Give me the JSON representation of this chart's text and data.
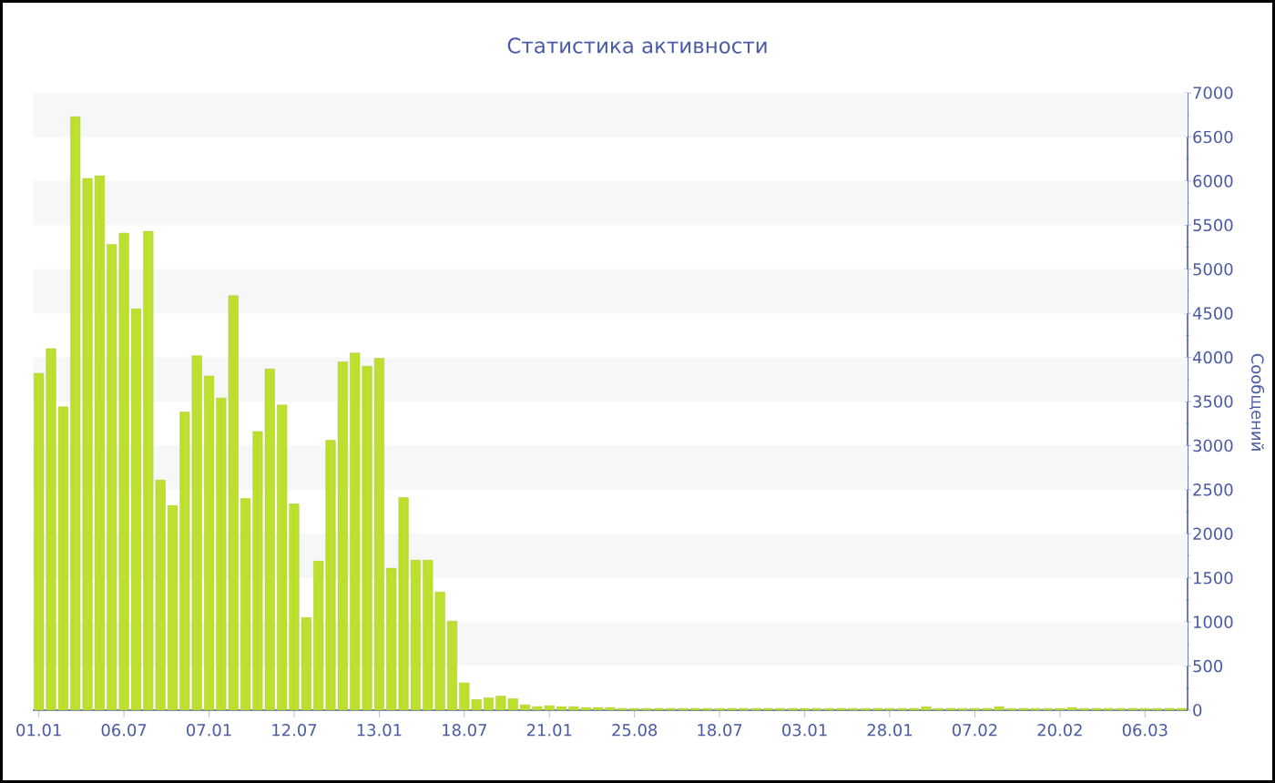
{
  "chart_data": {
    "type": "bar",
    "title": "Статистика активности",
    "ylabel": "Сообщений",
    "color": "#bde02f",
    "bands": [
      {
        "axis": "y",
        "from": 500,
        "to": 1000,
        "color": "#f7f7f7"
      },
      {
        "axis": "y",
        "from": 1500,
        "to": 2000,
        "color": "#f7f7f7"
      },
      {
        "axis": "y",
        "from": 2500,
        "to": 3000,
        "color": "#f7f7f7"
      },
      {
        "axis": "y",
        "from": 3500,
        "to": 4000,
        "color": "#f7f7f7"
      },
      {
        "axis": "y",
        "from": 4500,
        "to": 5000,
        "color": "#f7f7f7"
      },
      {
        "axis": "y",
        "from": 5500,
        "to": 6000,
        "color": "#f7f7f7"
      },
      {
        "axis": "y",
        "from": 6500,
        "to": 7000,
        "color": "#f7f7f7"
      }
    ],
    "categories": [
      "01.01",
      null,
      null,
      null,
      null,
      null,
      null,
      "06.07",
      null,
      null,
      null,
      null,
      null,
      null,
      "07.01",
      null,
      null,
      null,
      null,
      null,
      null,
      "12.07",
      null,
      null,
      null,
      null,
      null,
      null,
      "13.01",
      null,
      null,
      null,
      null,
      null,
      null,
      "18.07",
      null,
      null,
      null,
      null,
      null,
      null,
      "21.01",
      null,
      null,
      null,
      null,
      null,
      null,
      "25.08",
      null,
      null,
      null,
      null,
      null,
      null,
      "18.07",
      null,
      null,
      null,
      null,
      null,
      null,
      "03.01",
      null,
      null,
      null,
      null,
      null,
      null,
      "28.01",
      null,
      null,
      null,
      null,
      null,
      null,
      "07.02",
      null,
      null,
      null,
      null,
      null,
      null,
      "20.02",
      null,
      null,
      null,
      null,
      null,
      null,
      "06.03",
      null,
      null,
      null
    ],
    "values": [
      3820,
      4100,
      3440,
      6730,
      6030,
      6060,
      5280,
      5410,
      4550,
      5430,
      2610,
      2320,
      3380,
      4020,
      3790,
      3540,
      4700,
      2400,
      3160,
      3870,
      3460,
      2340,
      1050,
      1690,
      3060,
      3950,
      4050,
      3900,
      3990,
      1610,
      2410,
      1700,
      1700,
      1340,
      1010,
      310,
      120,
      140,
      160,
      130,
      60,
      40,
      50,
      40,
      40,
      30,
      30,
      30,
      20,
      20,
      20,
      20,
      20,
      20,
      20,
      20,
      20,
      20,
      20,
      20,
      20,
      20,
      20,
      20,
      20,
      20,
      20,
      20,
      20,
      20,
      20,
      20,
      20,
      40,
      20,
      20,
      20,
      20,
      20,
      40,
      20,
      20,
      20,
      20,
      20,
      30,
      20,
      20,
      20,
      20,
      20,
      20,
      20,
      20,
      20
    ],
    "ylim": [
      0,
      7000
    ],
    "yticks": [
      0,
      500,
      1000,
      1500,
      2000,
      2500,
      3000,
      3500,
      4000,
      4500,
      5000,
      5500,
      6000,
      6500,
      7000
    ]
  }
}
